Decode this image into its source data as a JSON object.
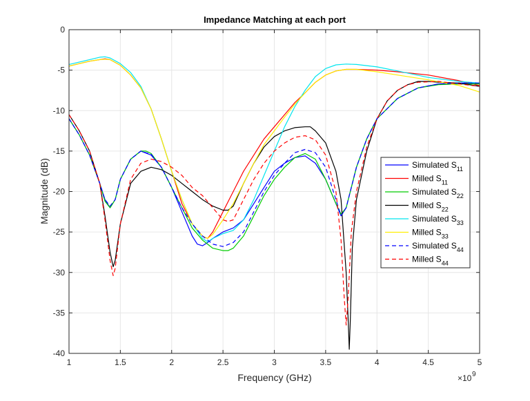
{
  "chart_data": {
    "type": "line",
    "title": "Impedance Matching at each port",
    "xlabel": "Frequency (GHz)",
    "ylabel": "Magnitude (dB)",
    "x_exponent_label": "×10",
    "x_exponent_power": "9",
    "xlim": [
      1,
      5
    ],
    "ylim": [
      -40,
      0
    ],
    "xticks": [
      1,
      1.5,
      2,
      2.5,
      3,
      3.5,
      4,
      4.5,
      5
    ],
    "xtick_labels": [
      "1",
      "1.5",
      "2",
      "2.5",
      "3",
      "3.5",
      "4",
      "4.5",
      "5"
    ],
    "yticks": [
      0,
      -5,
      -10,
      -15,
      -20,
      -25,
      -30,
      -35,
      -40
    ],
    "ytick_labels": [
      "0",
      "-5",
      "-10",
      "-15",
      "-20",
      "-25",
      "-30",
      "-35",
      "-40"
    ],
    "grid": true,
    "legend_position": "right",
    "series": [
      {
        "name": "Simulated S",
        "sub": "11",
        "color": "#0000ff",
        "dash": "solid",
        "x": [
          1.0,
          1.1,
          1.2,
          1.3,
          1.35,
          1.4,
          1.45,
          1.5,
          1.6,
          1.7,
          1.8,
          1.9,
          2.0,
          2.1,
          2.2,
          2.25,
          2.3,
          2.35,
          2.4,
          2.5,
          2.6,
          2.7,
          2.8,
          2.9,
          3.0,
          3.1,
          3.2,
          3.3,
          3.4,
          3.5,
          3.6,
          3.65,
          3.7,
          3.75,
          3.8,
          3.9,
          4.0,
          4.2,
          4.4,
          4.6,
          4.8,
          5.0
        ],
        "y": [
          -11.0,
          -13.0,
          -15.5,
          -19.0,
          -21.0,
          -22.0,
          -21.0,
          -18.5,
          -16.0,
          -15.0,
          -15.5,
          -17.0,
          -19.5,
          -22.5,
          -25.5,
          -26.5,
          -26.7,
          -26.3,
          -25.8,
          -25.0,
          -24.5,
          -23.5,
          -21.5,
          -19.5,
          -17.5,
          -16.5,
          -15.8,
          -15.6,
          -16.5,
          -18.5,
          -21.5,
          -23.0,
          -22.0,
          -19.5,
          -17.0,
          -13.5,
          -11.0,
          -8.5,
          -7.2,
          -6.7,
          -6.6,
          -6.6
        ]
      },
      {
        "name": "Milled S",
        "sub": "11",
        "color": "#ff0000",
        "dash": "solid",
        "x": [
          1.0,
          1.1,
          1.2,
          1.3,
          1.35,
          1.4,
          1.5,
          1.6,
          1.7,
          1.8,
          1.9,
          2.0,
          2.1,
          2.2,
          2.3,
          2.35,
          2.4,
          2.5,
          2.6,
          2.7,
          2.8,
          2.9,
          3.0,
          3.1,
          3.2,
          3.3,
          3.4,
          3.5,
          3.6,
          3.7,
          3.8,
          4.0,
          4.2,
          4.5,
          4.8,
          5.0
        ],
        "y": [
          -4.5,
          -4.2,
          -3.9,
          -3.7,
          -3.6,
          -3.7,
          -4.4,
          -5.6,
          -7.2,
          -9.8,
          -13.5,
          -17.5,
          -21.5,
          -24.0,
          -25.5,
          -25.8,
          -25.0,
          -22.5,
          -20.0,
          -17.5,
          -15.5,
          -13.5,
          -12.0,
          -10.5,
          -9.0,
          -7.8,
          -6.5,
          -5.6,
          -5.1,
          -4.9,
          -4.9,
          -5.0,
          -5.2,
          -5.6,
          -6.3,
          -6.9
        ]
      },
      {
        "name": "Simulated S",
        "sub": "22",
        "color": "#00cc00",
        "dash": "solid",
        "x": [
          1.0,
          1.1,
          1.2,
          1.3,
          1.35,
          1.4,
          1.45,
          1.5,
          1.6,
          1.7,
          1.75,
          1.8,
          1.9,
          2.0,
          2.1,
          2.2,
          2.3,
          2.4,
          2.5,
          2.55,
          2.6,
          2.7,
          2.8,
          2.9,
          3.0,
          3.1,
          3.2,
          3.3,
          3.4,
          3.5,
          3.6,
          3.65,
          3.7,
          3.75,
          3.8,
          3.9,
          4.0,
          4.2,
          4.4,
          4.6,
          4.8,
          5.0
        ],
        "y": [
          -11.0,
          -13.0,
          -15.5,
          -19.0,
          -21.2,
          -22.0,
          -21.0,
          -18.5,
          -16.0,
          -15.0,
          -15.0,
          -15.3,
          -17.0,
          -19.5,
          -22.0,
          -24.5,
          -26.0,
          -27.0,
          -27.3,
          -27.3,
          -27.0,
          -25.5,
          -23.0,
          -20.5,
          -18.5,
          -17.0,
          -15.8,
          -15.3,
          -16.0,
          -18.5,
          -21.5,
          -22.8,
          -22.0,
          -19.5,
          -17.0,
          -13.5,
          -11.0,
          -8.5,
          -7.2,
          -6.8,
          -6.7,
          -6.7
        ]
      },
      {
        "name": "Milled S",
        "sub": "22",
        "color": "#000000",
        "dash": "solid",
        "x": [
          1.0,
          1.1,
          1.2,
          1.3,
          1.35,
          1.4,
          1.43,
          1.45,
          1.5,
          1.6,
          1.7,
          1.8,
          1.9,
          2.0,
          2.1,
          2.2,
          2.3,
          2.4,
          2.5,
          2.55,
          2.6,
          2.7,
          2.8,
          2.9,
          3.0,
          3.1,
          3.2,
          3.3,
          3.35,
          3.4,
          3.5,
          3.6,
          3.65,
          3.7,
          3.72,
          3.73,
          3.74,
          3.76,
          3.8,
          3.9,
          4.0,
          4.1,
          4.2,
          4.3,
          4.4,
          4.5,
          4.6,
          4.8,
          5.0
        ],
        "y": [
          -10.5,
          -12.5,
          -15.0,
          -19.0,
          -23.0,
          -27.5,
          -29.3,
          -28.5,
          -24.0,
          -19.0,
          -17.5,
          -17.0,
          -17.3,
          -18.0,
          -19.0,
          -20.0,
          -21.0,
          -21.8,
          -22.3,
          -22.3,
          -21.8,
          -19.0,
          -16.5,
          -14.5,
          -13.2,
          -12.5,
          -12.1,
          -12.0,
          -12.0,
          -12.5,
          -14.0,
          -17.5,
          -21.0,
          -30.0,
          -36.0,
          -39.5,
          -36.0,
          -27.0,
          -21.0,
          -15.0,
          -11.0,
          -8.8,
          -7.5,
          -6.8,
          -6.4,
          -6.4,
          -6.5,
          -6.6,
          -7.0
        ]
      },
      {
        "name": "Simulated S",
        "sub": "33",
        "color": "#00e5ee",
        "dash": "solid",
        "x": [
          1.0,
          1.1,
          1.2,
          1.3,
          1.35,
          1.4,
          1.5,
          1.6,
          1.7,
          1.8,
          1.9,
          2.0,
          2.1,
          2.2,
          2.3,
          2.35,
          2.4,
          2.5,
          2.6,
          2.7,
          2.8,
          2.9,
          3.0,
          3.1,
          3.2,
          3.3,
          3.4,
          3.5,
          3.6,
          3.7,
          3.8,
          4.0,
          4.2,
          4.5,
          4.8,
          5.0
        ],
        "y": [
          -4.3,
          -4.0,
          -3.7,
          -3.4,
          -3.35,
          -3.5,
          -4.2,
          -5.3,
          -7.0,
          -9.8,
          -13.5,
          -17.5,
          -21.0,
          -24.0,
          -25.8,
          -26.2,
          -25.8,
          -25.2,
          -24.8,
          -23.5,
          -21.0,
          -18.0,
          -15.0,
          -12.0,
          -9.5,
          -7.5,
          -5.8,
          -4.8,
          -4.35,
          -4.25,
          -4.3,
          -4.6,
          -5.1,
          -5.9,
          -6.4,
          -6.6
        ]
      },
      {
        "name": "Milled S",
        "sub": "33",
        "color": "#ffee00",
        "dash": "solid",
        "x": [
          1.0,
          1.1,
          1.2,
          1.3,
          1.35,
          1.4,
          1.5,
          1.6,
          1.7,
          1.8,
          1.9,
          2.0,
          2.1,
          2.2,
          2.3,
          2.35,
          2.4,
          2.5,
          2.6,
          2.7,
          2.8,
          2.9,
          3.0,
          3.1,
          3.2,
          3.3,
          3.4,
          3.5,
          3.6,
          3.7,
          3.8,
          4.0,
          4.2,
          4.5,
          4.8,
          5.0
        ],
        "y": [
          -4.5,
          -4.2,
          -3.9,
          -3.7,
          -3.65,
          -3.7,
          -4.4,
          -5.6,
          -7.2,
          -9.8,
          -13.5,
          -17.5,
          -21.0,
          -24.0,
          -25.5,
          -25.8,
          -25.3,
          -23.5,
          -21.5,
          -19.0,
          -16.5,
          -14.2,
          -12.5,
          -10.8,
          -9.2,
          -7.8,
          -6.5,
          -5.6,
          -5.1,
          -4.9,
          -4.9,
          -5.2,
          -5.6,
          -6.2,
          -6.9,
          -7.7
        ]
      },
      {
        "name": "Simulated S",
        "sub": "44",
        "color": "#0000ff",
        "dash": "dashed",
        "x": [
          1.0,
          1.1,
          1.2,
          1.3,
          1.35,
          1.4,
          1.45,
          1.5,
          1.6,
          1.7,
          1.8,
          1.9,
          2.0,
          2.1,
          2.2,
          2.3,
          2.4,
          2.5,
          2.6,
          2.7,
          2.8,
          2.9,
          3.0,
          3.1,
          3.2,
          3.3,
          3.4,
          3.5,
          3.6,
          3.65,
          3.7,
          3.75,
          3.8,
          3.9,
          4.0,
          4.2,
          4.4,
          4.6,
          4.8,
          5.0
        ],
        "y": [
          -11.0,
          -13.0,
          -15.5,
          -19.0,
          -21.0,
          -21.8,
          -21.0,
          -18.5,
          -16.0,
          -15.0,
          -15.4,
          -17.0,
          -19.5,
          -22.0,
          -24.0,
          -25.5,
          -26.5,
          -26.8,
          -26.3,
          -25.0,
          -22.5,
          -20.0,
          -18.0,
          -16.5,
          -15.2,
          -14.8,
          -15.2,
          -17.0,
          -21.0,
          -23.0,
          -22.0,
          -19.5,
          -17.0,
          -13.5,
          -11.0,
          -8.5,
          -7.2,
          -6.7,
          -6.6,
          -6.6
        ]
      },
      {
        "name": "Milled S",
        "sub": "44",
        "color": "#ff0000",
        "dash": "dashed",
        "x": [
          1.0,
          1.1,
          1.2,
          1.3,
          1.35,
          1.4,
          1.43,
          1.45,
          1.5,
          1.6,
          1.7,
          1.8,
          1.9,
          2.0,
          2.1,
          2.2,
          2.3,
          2.4,
          2.5,
          2.55,
          2.6,
          2.7,
          2.8,
          2.9,
          3.0,
          3.1,
          3.2,
          3.3,
          3.4,
          3.5,
          3.6,
          3.65,
          3.68,
          3.7,
          3.72,
          3.75,
          3.8,
          3.9,
          4.0,
          4.1,
          4.2,
          4.3,
          4.4,
          4.6,
          4.8,
          5.0
        ],
        "y": [
          -10.5,
          -12.5,
          -15.0,
          -19.0,
          -23.5,
          -28.5,
          -30.4,
          -29.5,
          -24.0,
          -18.5,
          -16.5,
          -16.0,
          -16.3,
          -17.0,
          -18.0,
          -19.5,
          -20.5,
          -22.0,
          -23.5,
          -23.7,
          -23.5,
          -21.0,
          -18.5,
          -16.5,
          -15.0,
          -14.0,
          -13.3,
          -13.1,
          -13.6,
          -15.5,
          -20.0,
          -26.0,
          -33.0,
          -36.5,
          -33.0,
          -25.0,
          -20.0,
          -14.5,
          -11.0,
          -8.8,
          -7.5,
          -6.8,
          -6.5,
          -6.4,
          -6.7,
          -7.0
        ]
      }
    ]
  }
}
